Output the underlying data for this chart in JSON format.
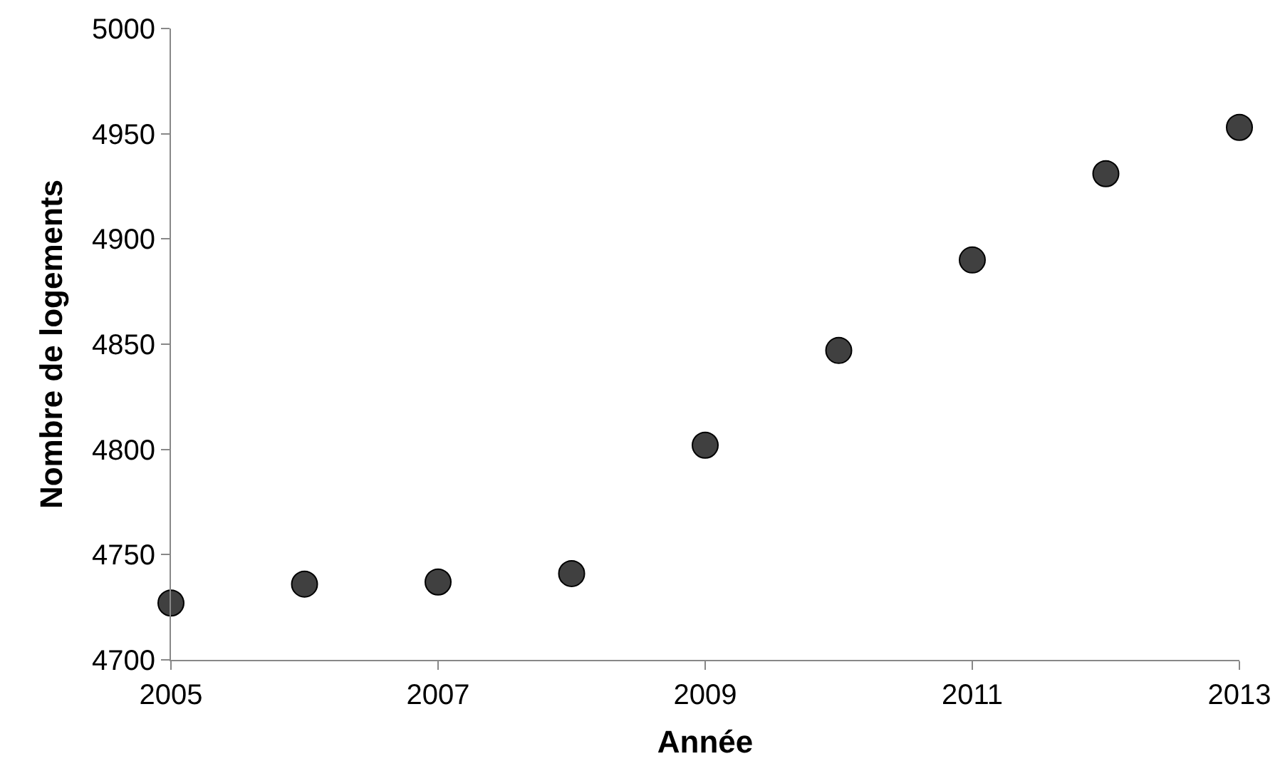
{
  "chart_data": {
    "type": "scatter",
    "xlabel": "Année",
    "ylabel": "Nombre de logements",
    "x": [
      2005,
      2006,
      2007,
      2008,
      2009,
      2010,
      2011,
      2012,
      2013
    ],
    "series": [
      {
        "color": "#404040",
        "values": [
          4727,
          4736,
          4737,
          4741,
          4802,
          4847,
          4890,
          4931,
          4953
        ]
      }
    ],
    "xlim": [
      2005,
      2013
    ],
    "xticks": [
      2005,
      2007,
      2009,
      2011,
      2013
    ],
    "ylim": [
      4700,
      5000
    ],
    "yticks": [
      4700,
      4750,
      4800,
      4850,
      4900,
      4950,
      5000
    ],
    "grid": false,
    "legend": false,
    "marker": "circle"
  }
}
